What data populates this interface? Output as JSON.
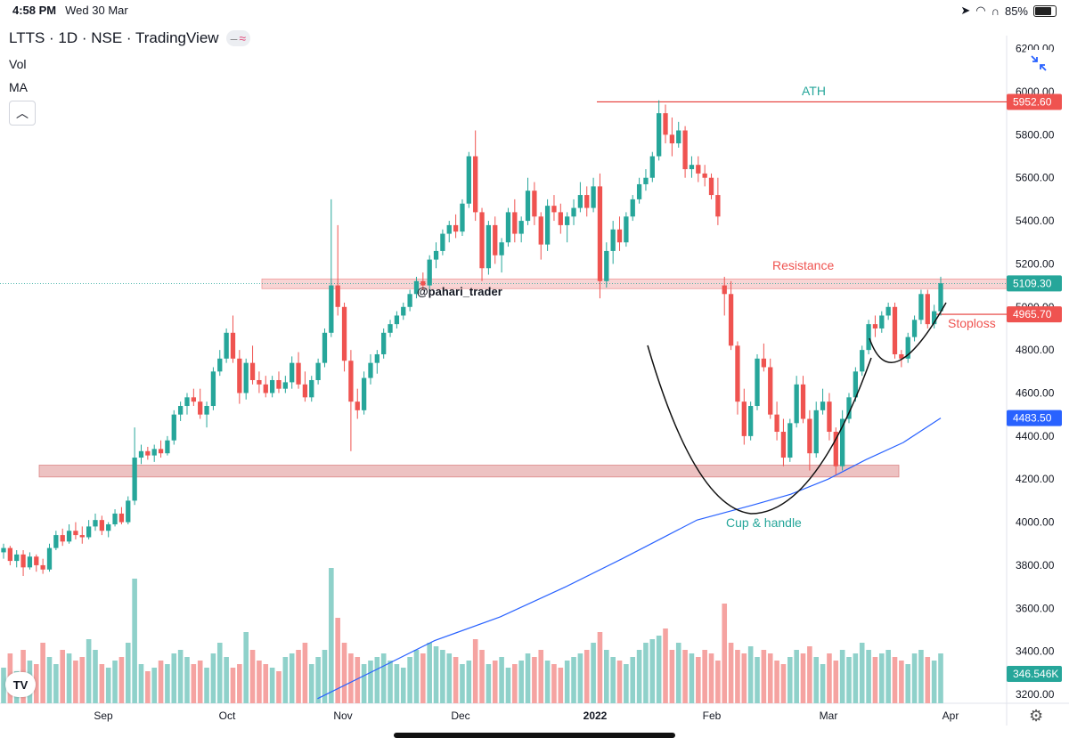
{
  "status_bar": {
    "time": "4:58 PM",
    "date": "Wed 30 Mar",
    "battery": "85%"
  },
  "legend": {
    "title": "LTTS · 1D · NSE · TradingView",
    "vol": "Vol",
    "ma": "MA",
    "pill_minus": "–",
    "pill_wave": "≈"
  },
  "colors": {
    "up": "#26a69a",
    "down": "#ef5350",
    "ma": "#2962ff",
    "resistance_zone": "#f6c6c6",
    "support_zone": "#e8b3b3",
    "ath_line": "#e53935"
  },
  "icons": {
    "expand": "collapse-arrows-icon",
    "logo": "tradingview-logo-icon",
    "settings": "gear-icon",
    "collapse": "chevron-up-icon"
  },
  "chart_data": {
    "type": "candlestick",
    "symbol": "LTTS",
    "interval": "1D",
    "exchange": "NSE",
    "y_ticks": [
      "3200.00",
      "3400.00",
      "3600.00",
      "3800.00",
      "4000.00",
      "4200.00",
      "4400.00",
      "4600.00",
      "4800.00",
      "5000.00",
      "5200.00",
      "5400.00",
      "5600.00",
      "5800.00",
      "6000.00",
      "6200.00"
    ],
    "ylim": [
      3180,
      6240
    ],
    "x_ticks": [
      "Sep",
      "Oct",
      "Nov",
      "Dec",
      "2022",
      "Feb",
      "Mar",
      "Apr"
    ],
    "price_tags": [
      {
        "value": 5952.6,
        "label": "5952.60",
        "color": "#ef5350"
      },
      {
        "value": 5109.3,
        "label": "5109.30",
        "color": "#26a69a"
      },
      {
        "value": 4965.7,
        "label": "4965.70",
        "color": "#ef5350"
      },
      {
        "value": 4483.5,
        "label": "4483.50",
        "color": "#2962ff"
      },
      {
        "value": 3280,
        "label": "346.546K",
        "color": "#26a69a"
      }
    ],
    "annotations": {
      "ath": "ATH",
      "resistance": "Resistance",
      "stoploss": "Stoploss",
      "pattern": "Cup & handle",
      "watermark": "@pahari_trader"
    },
    "levels": {
      "ath": 5952.6,
      "resistance": [
        5085,
        5130
      ],
      "support": [
        4210,
        4265
      ],
      "stoploss": 4965.7
    },
    "ma_series": [
      [
        0.335,
        3180
      ],
      [
        0.4,
        3320
      ],
      [
        0.46,
        3450
      ],
      [
        0.53,
        3560
      ],
      [
        0.6,
        3700
      ],
      [
        0.66,
        3830
      ],
      [
        0.7,
        3920
      ],
      [
        0.74,
        4010
      ],
      [
        0.8,
        4080
      ],
      [
        0.84,
        4130
      ],
      [
        0.88,
        4200
      ],
      [
        0.92,
        4290
      ],
      [
        0.96,
        4370
      ],
      [
        1.0,
        4483.5
      ]
    ],
    "candles": [
      [
        3860,
        3900,
        3830,
        3880
      ],
      [
        3880,
        3890,
        3800,
        3820
      ],
      [
        3820,
        3870,
        3790,
        3850
      ],
      [
        3850,
        3870,
        3750,
        3790
      ],
      [
        3790,
        3860,
        3780,
        3840
      ],
      [
        3840,
        3850,
        3770,
        3800
      ],
      [
        3800,
        3830,
        3760,
        3780
      ],
      [
        3780,
        3900,
        3770,
        3880
      ],
      [
        3880,
        3960,
        3870,
        3940
      ],
      [
        3940,
        3970,
        3890,
        3910
      ],
      [
        3910,
        3990,
        3900,
        3960
      ],
      [
        3960,
        4000,
        3920,
        3940
      ],
      [
        3940,
        3980,
        3900,
        3930
      ],
      [
        3930,
        4010,
        3920,
        3980
      ],
      [
        3980,
        4040,
        3960,
        4010
      ],
      [
        4010,
        4030,
        3940,
        3960
      ],
      [
        3960,
        4000,
        3930,
        3990
      ],
      [
        3990,
        4060,
        3980,
        4040
      ],
      [
        4040,
        4070,
        3990,
        4000
      ],
      [
        4000,
        4120,
        3990,
        4100
      ],
      [
        4100,
        4440,
        4080,
        4300
      ],
      [
        4300,
        4360,
        4270,
        4330
      ],
      [
        4330,
        4350,
        4290,
        4310
      ],
      [
        4310,
        4360,
        4280,
        4340
      ],
      [
        4340,
        4380,
        4300,
        4320
      ],
      [
        4320,
        4400,
        4310,
        4380
      ],
      [
        4380,
        4520,
        4360,
        4500
      ],
      [
        4500,
        4560,
        4470,
        4540
      ],
      [
        4540,
        4600,
        4500,
        4580
      ],
      [
        4580,
        4620,
        4540,
        4560
      ],
      [
        4560,
        4620,
        4480,
        4500
      ],
      [
        4500,
        4560,
        4440,
        4540
      ],
      [
        4540,
        4720,
        4520,
        4700
      ],
      [
        4700,
        4800,
        4680,
        4760
      ],
      [
        4760,
        4900,
        4740,
        4880
      ],
      [
        4880,
        4960,
        4740,
        4760
      ],
      [
        4760,
        4800,
        4550,
        4600
      ],
      [
        4600,
        4760,
        4570,
        4740
      ],
      [
        4740,
        4820,
        4640,
        4660
      ],
      [
        4660,
        4700,
        4600,
        4640
      ],
      [
        4640,
        4680,
        4580,
        4600
      ],
      [
        4600,
        4680,
        4580,
        4660
      ],
      [
        4660,
        4700,
        4600,
        4620
      ],
      [
        4620,
        4680,
        4600,
        4650
      ],
      [
        4650,
        4770,
        4620,
        4740
      ],
      [
        4740,
        4790,
        4620,
        4640
      ],
      [
        4640,
        4700,
        4560,
        4580
      ],
      [
        4580,
        4680,
        4560,
        4660
      ],
      [
        4660,
        4760,
        4640,
        4740
      ],
      [
        4740,
        4900,
        4720,
        4880
      ],
      [
        4880,
        5500,
        4860,
        5100
      ],
      [
        5100,
        5380,
        4960,
        5000
      ],
      [
        5000,
        5020,
        4700,
        4750
      ],
      [
        4750,
        4800,
        4330,
        4560
      ],
      [
        4560,
        4620,
        4480,
        4520
      ],
      [
        4520,
        4700,
        4500,
        4670
      ],
      [
        4670,
        4780,
        4640,
        4740
      ],
      [
        4740,
        4800,
        4690,
        4780
      ],
      [
        4780,
        4900,
        4760,
        4880
      ],
      [
        4880,
        4940,
        4860,
        4920
      ],
      [
        4920,
        4980,
        4900,
        4960
      ],
      [
        4960,
        5020,
        4940,
        5000
      ],
      [
        5000,
        5080,
        4980,
        5060
      ],
      [
        5060,
        5140,
        5040,
        5120
      ],
      [
        5120,
        5160,
        5080,
        5100
      ],
      [
        5100,
        5240,
        5080,
        5220
      ],
      [
        5220,
        5300,
        5180,
        5260
      ],
      [
        5260,
        5360,
        5240,
        5340
      ],
      [
        5340,
        5400,
        5300,
        5380
      ],
      [
        5380,
        5430,
        5320,
        5350
      ],
      [
        5350,
        5500,
        5330,
        5480
      ],
      [
        5480,
        5720,
        5460,
        5700
      ],
      [
        5700,
        5820,
        5400,
        5440
      ],
      [
        5440,
        5460,
        5120,
        5180
      ],
      [
        5180,
        5400,
        5150,
        5380
      ],
      [
        5380,
        5420,
        5200,
        5240
      ],
      [
        5240,
        5320,
        5160,
        5300
      ],
      [
        5300,
        5460,
        5280,
        5440
      ],
      [
        5440,
        5500,
        5300,
        5340
      ],
      [
        5340,
        5420,
        5300,
        5400
      ],
      [
        5400,
        5600,
        5380,
        5540
      ],
      [
        5540,
        5580,
        5380,
        5420
      ],
      [
        5420,
        5440,
        5220,
        5290
      ],
      [
        5290,
        5500,
        5260,
        5470
      ],
      [
        5470,
        5520,
        5400,
        5440
      ],
      [
        5440,
        5480,
        5340,
        5380
      ],
      [
        5380,
        5440,
        5300,
        5420
      ],
      [
        5420,
        5500,
        5380,
        5460
      ],
      [
        5460,
        5580,
        5440,
        5520
      ],
      [
        5520,
        5560,
        5420,
        5460
      ],
      [
        5460,
        5600,
        5440,
        5560
      ],
      [
        5560,
        5620,
        5040,
        5120
      ],
      [
        5120,
        5300,
        5090,
        5260
      ],
      [
        5260,
        5400,
        5200,
        5360
      ],
      [
        5360,
        5420,
        5260,
        5300
      ],
      [
        5300,
        5440,
        5280,
        5420
      ],
      [
        5420,
        5520,
        5400,
        5500
      ],
      [
        5500,
        5600,
        5480,
        5570
      ],
      [
        5570,
        5640,
        5540,
        5600
      ],
      [
        5600,
        5720,
        5580,
        5700
      ],
      [
        5700,
        5960,
        5680,
        5900
      ],
      [
        5900,
        5940,
        5760,
        5800
      ],
      [
        5800,
        5880,
        5700,
        5760
      ],
      [
        5760,
        5860,
        5740,
        5820
      ],
      [
        5820,
        5840,
        5600,
        5640
      ],
      [
        5640,
        5700,
        5600,
        5660
      ],
      [
        5660,
        5700,
        5580,
        5620
      ],
      [
        5620,
        5660,
        5560,
        5600
      ],
      [
        5600,
        5620,
        5500,
        5520
      ],
      [
        5520,
        5600,
        5380,
        5420
      ],
      [
        5100,
        5140,
        4960,
        5060
      ],
      [
        5060,
        5120,
        4800,
        4820
      ],
      [
        4820,
        4840,
        4500,
        4560
      ],
      [
        4560,
        4620,
        4360,
        4400
      ],
      [
        4400,
        4560,
        4380,
        4540
      ],
      [
        4540,
        4780,
        4520,
        4760
      ],
      [
        4760,
        4830,
        4700,
        4720
      ],
      [
        4720,
        4760,
        4480,
        4500
      ],
      [
        4500,
        4560,
        4380,
        4420
      ],
      [
        4420,
        4480,
        4260,
        4300
      ],
      [
        4300,
        4480,
        4280,
        4460
      ],
      [
        4460,
        4680,
        4440,
        4640
      ],
      [
        4640,
        4680,
        4460,
        4480
      ],
      [
        4480,
        4520,
        4240,
        4320
      ],
      [
        4320,
        4560,
        4300,
        4520
      ],
      [
        4520,
        4620,
        4500,
        4560
      ],
      [
        4560,
        4600,
        4380,
        4420
      ],
      [
        4420,
        4440,
        4220,
        4260
      ],
      [
        4260,
        4520,
        4240,
        4480
      ],
      [
        4480,
        4600,
        4460,
        4580
      ],
      [
        4580,
        4720,
        4560,
        4700
      ],
      [
        4700,
        4820,
        4680,
        4800
      ],
      [
        4800,
        4940,
        4780,
        4920
      ],
      [
        4920,
        4960,
        4860,
        4900
      ],
      [
        4900,
        4980,
        4880,
        4960
      ],
      [
        4960,
        5020,
        4940,
        5000
      ],
      [
        5000,
        5020,
        4760,
        4780
      ],
      [
        4780,
        4800,
        4720,
        4760
      ],
      [
        4760,
        4880,
        4740,
        4860
      ],
      [
        4860,
        4960,
        4840,
        4940
      ],
      [
        4940,
        5080,
        4920,
        5060
      ],
      [
        5060,
        5080,
        4900,
        4920
      ],
      [
        4920,
        5010,
        4900,
        4980
      ],
      [
        4980,
        5140,
        4960,
        5110
      ]
    ],
    "volumes": [
      20,
      28,
      18,
      30,
      24,
      22,
      34,
      26,
      22,
      30,
      28,
      24,
      26,
      36,
      30,
      22,
      20,
      24,
      26,
      34,
      70,
      22,
      18,
      20,
      24,
      22,
      28,
      30,
      26,
      22,
      24,
      20,
      28,
      34,
      26,
      20,
      22,
      40,
      30,
      24,
      22,
      20,
      18,
      26,
      28,
      30,
      34,
      22,
      26,
      30,
      76,
      48,
      34,
      28,
      26,
      22,
      24,
      26,
      28,
      24,
      22,
      20,
      26,
      30,
      28,
      34,
      32,
      30,
      28,
      26,
      22,
      24,
      36,
      30,
      22,
      24,
      26,
      20,
      22,
      24,
      28,
      26,
      30,
      24,
      22,
      20,
      24,
      26,
      28,
      30,
      34,
      40,
      30,
      26,
      24,
      22,
      26,
      30,
      34,
      36,
      38,
      42,
      30,
      34,
      30,
      28,
      26,
      30,
      28,
      24,
      56,
      34,
      30,
      28,
      32,
      26,
      30,
      28,
      24,
      22,
      26,
      30,
      28,
      32,
      26,
      22,
      28,
      24,
      30,
      26,
      28,
      34,
      30,
      26,
      28,
      30,
      26,
      24,
      22,
      28,
      30,
      26,
      24,
      28
    ]
  }
}
